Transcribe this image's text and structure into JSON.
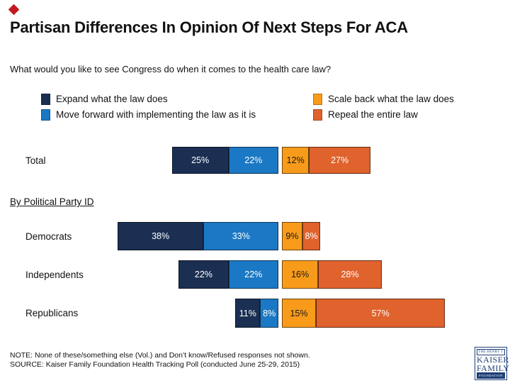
{
  "title": "Partisan Differences In Opinion Of Next Steps For ACA",
  "question": "What would you like to see Congress do when it comes to the health care law?",
  "section_header": "By Political Party ID",
  "colors": {
    "navy": "#1a2f52",
    "blue": "#1b78c4",
    "orange": "#f89b1a",
    "dark_orange": "#e0622d",
    "diamond_red": "#c01a1f",
    "logo_navy": "#1f3f77"
  },
  "legend": [
    {
      "label": "Expand what the law does"
    },
    {
      "label": "Move forward with implementing the law as it is"
    },
    {
      "label": "Scale back what the law does"
    },
    {
      "label": "Repeal the entire law"
    }
  ],
  "chart_data": {
    "type": "bar",
    "orientation": "horizontal-diverging-stacked",
    "unit": "%",
    "categories": [
      "Total",
      "Democrats",
      "Independents",
      "Republicans"
    ],
    "series": [
      {
        "name": "Expand what the law does",
        "side": "left",
        "color": "#1a2f52",
        "label_color": "#ffffff",
        "values": [
          25,
          38,
          22,
          11
        ]
      },
      {
        "name": "Move forward with implementing the law as it is",
        "side": "left",
        "color": "#1b78c4",
        "label_color": "#ffffff",
        "values": [
          22,
          33,
          22,
          8
        ]
      },
      {
        "name": "Scale back what the law does",
        "side": "right",
        "color": "#f89b1a",
        "label_color": "#1a1a1a",
        "values": [
          12,
          9,
          16,
          15
        ]
      },
      {
        "name": "Repeal the entire law",
        "side": "right",
        "color": "#e0622d",
        "label_color": "#ffffff",
        "values": [
          27,
          8,
          28,
          57
        ]
      }
    ],
    "value_labels_shown": true,
    "axis_shown": false,
    "legend_position": "top-two-columns"
  },
  "note": "NOTE: None of these/something else (Vol.) and Don’t know/Refused responses not shown.",
  "source": "SOURCE: Kaiser Family Foundation Health Tracking Poll (conducted June 25-29, 2015)",
  "logo": {
    "line1": "THE HENRY J.",
    "line2": "KAISER",
    "line3": "FAMILY",
    "line4": "FOUNDATION"
  }
}
